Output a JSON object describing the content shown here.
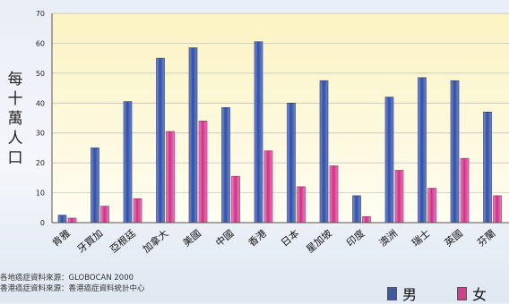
{
  "chart_data": {
    "type": "bar",
    "ylabel": "每十萬人口",
    "ylim": [
      0,
      70
    ],
    "yticks": [
      0,
      10,
      20,
      30,
      40,
      50,
      60,
      70
    ],
    "grid": true,
    "categories": [
      "肯雅",
      "牙買加",
      "亞根廷",
      "加拿大",
      "美國",
      "中國",
      "香港",
      "日本",
      "星加坡",
      "印度",
      "澳洲",
      "瑞士",
      "英國",
      "芬蘭"
    ],
    "series": [
      {
        "name": "男",
        "color": "#3d5aa8",
        "values": [
          2.5,
          25,
          40.5,
          55,
          58.5,
          38.5,
          60.5,
          40,
          47.5,
          9,
          42,
          48.5,
          47.5,
          37
        ]
      },
      {
        "name": "女",
        "color": "#d0408f",
        "values": [
          1.5,
          5.5,
          8,
          30.5,
          34,
          15.5,
          24,
          12,
          19,
          2,
          17.5,
          11.5,
          21.5,
          9
        ]
      }
    ],
    "legend_position": "bottom-right"
  },
  "sources": {
    "line1": "各地癌症資料來源：GLOBOCAN 2000",
    "line2": "香港癌症資料來源：香港癌症資料統計中心"
  }
}
